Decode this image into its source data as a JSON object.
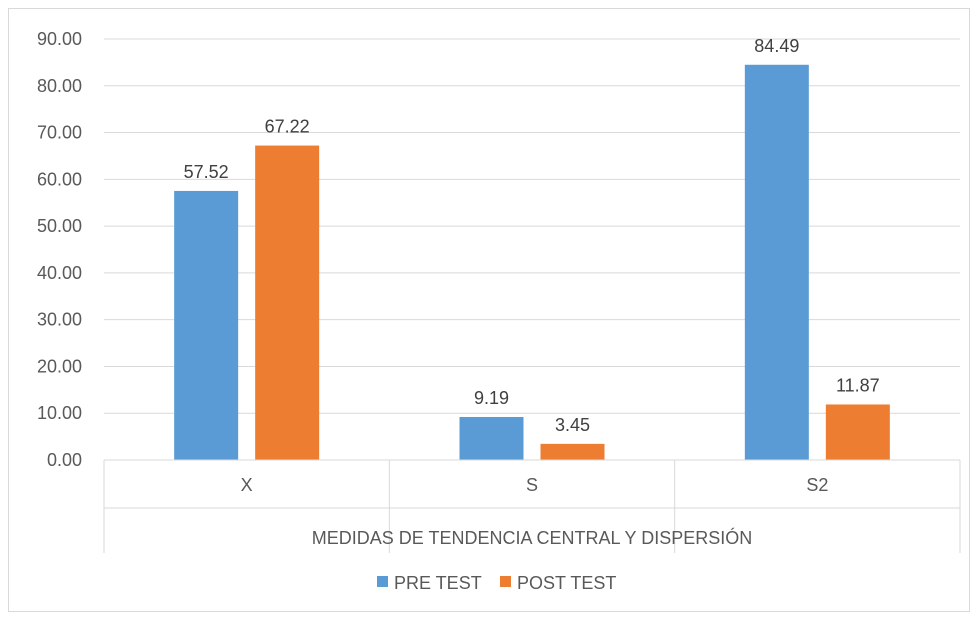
{
  "chart_data": {
    "type": "bar",
    "title": "",
    "xlabel": "MEDIDAS DE TENDENCIA CENTRAL  Y DISPERSIÓN",
    "ylabel": "",
    "categories": [
      "X",
      "S",
      "S2"
    ],
    "series": [
      {
        "name": "PRE TEST",
        "color": "#5B9BD5",
        "values": [
          57.52,
          9.19,
          84.49
        ],
        "labels": [
          "57.52",
          "9.19",
          "84.49"
        ]
      },
      {
        "name": "POST TEST",
        "color": "#ED7D31",
        "values": [
          67.22,
          3.45,
          11.87
        ],
        "labels": [
          "67.22",
          "3.45",
          "11.87"
        ]
      }
    ],
    "ylim": [
      0,
      90
    ],
    "yticks": [
      "0.00",
      "10.00",
      "20.00",
      "30.00",
      "40.00",
      "50.00",
      "60.00",
      "70.00",
      "80.00",
      "90.00"
    ],
    "grid": true,
    "legend_position": "bottom"
  }
}
